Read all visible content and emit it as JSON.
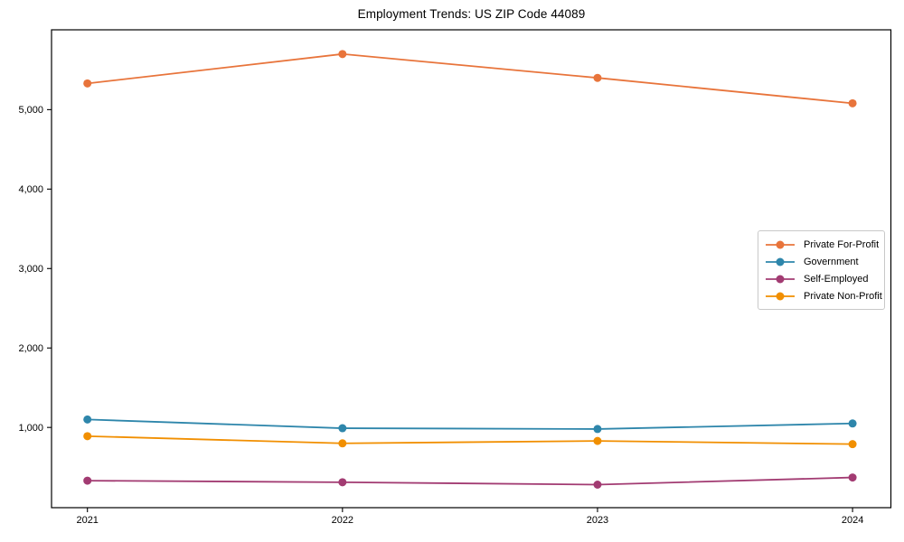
{
  "chart_data": {
    "type": "line",
    "title": "Employment Trends: US ZIP Code 44089",
    "xlabel": "",
    "ylabel": "",
    "categories": [
      "2021",
      "2022",
      "2023",
      "2024"
    ],
    "y_ticks": [
      1000,
      2000,
      3000,
      4000,
      5000
    ],
    "y_tick_labels": [
      "1,000",
      "2,000",
      "3,000",
      "4,000",
      "5,000"
    ],
    "ylim": [
      -10,
      6005
    ],
    "grid": false,
    "legend_position": "center-right",
    "marker": "circle",
    "series": [
      {
        "name": "Private For-Profit",
        "color": "#E8743B",
        "values": [
          5330,
          5700,
          5400,
          5080
        ]
      },
      {
        "name": "Government",
        "color": "#2E86AB",
        "values": [
          1100,
          990,
          980,
          1050
        ]
      },
      {
        "name": "Self-Employed",
        "color": "#A23B72",
        "values": [
          330,
          310,
          280,
          370
        ]
      },
      {
        "name": "Private Non-Profit",
        "color": "#F18F01",
        "values": [
          890,
          800,
          830,
          790
        ]
      }
    ]
  }
}
